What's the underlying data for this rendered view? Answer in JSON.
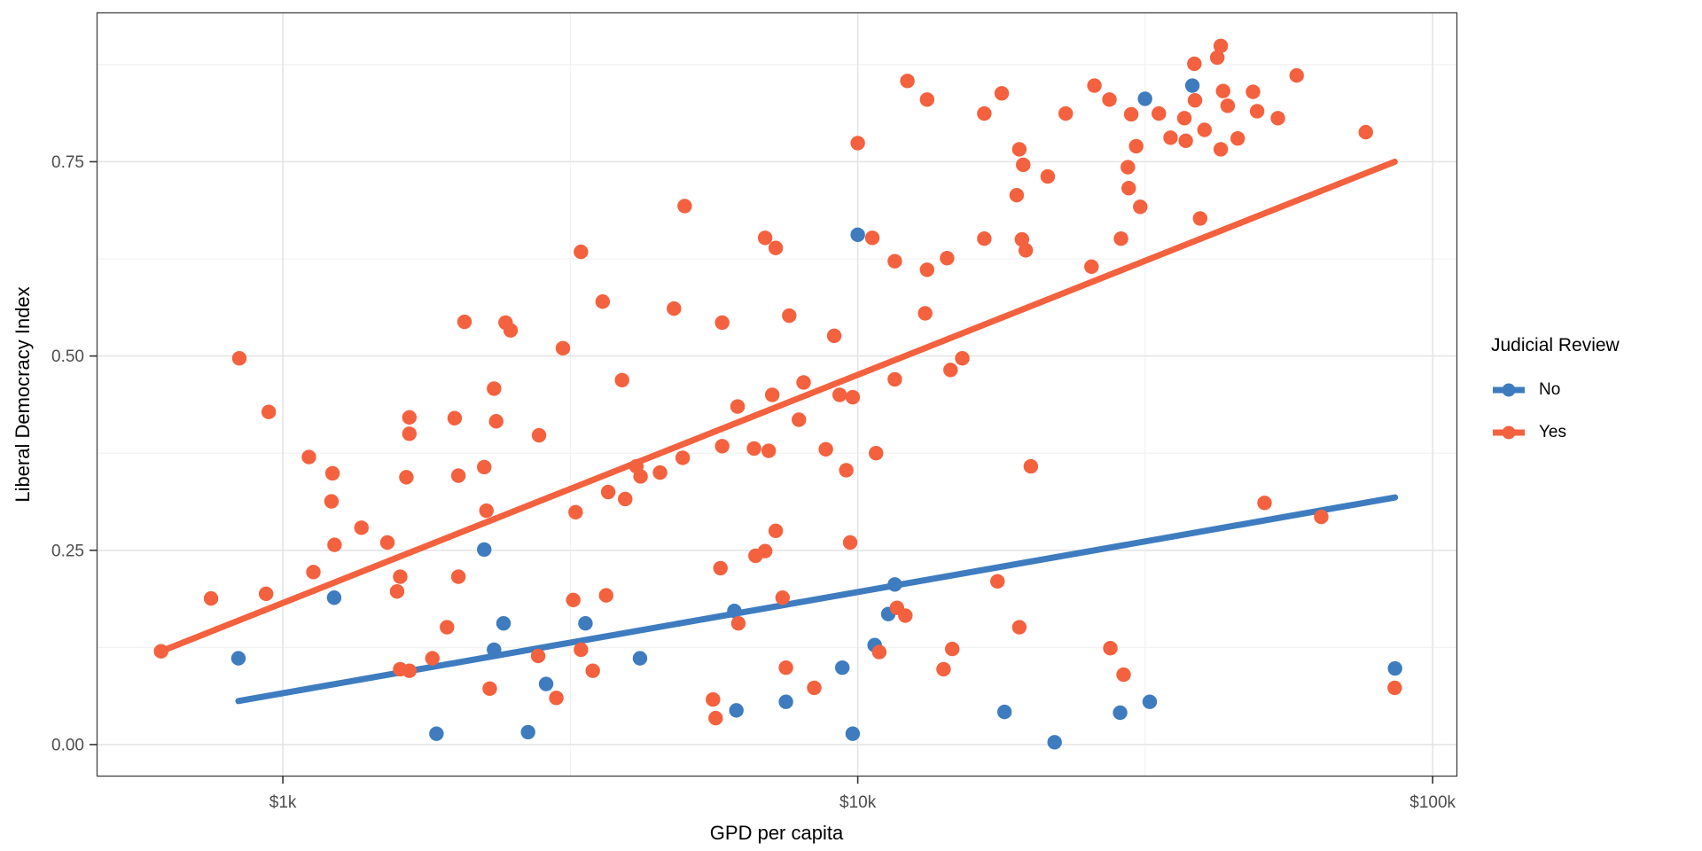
{
  "chart_data": {
    "type": "scatter",
    "title": "",
    "xlabel": "GPD per capita",
    "ylabel": "Liberal Democracy Index",
    "x_scale": "log10",
    "xlim": [
      476,
      110000
    ],
    "ylim": [
      -0.04,
      0.941
    ],
    "grid": true,
    "x_ticks": [
      {
        "value": 1000,
        "label": "$1k"
      },
      {
        "value": 10000,
        "label": "$10k"
      },
      {
        "value": 100000,
        "label": "$100k"
      }
    ],
    "x_minor": [
      3162,
      31623
    ],
    "y_ticks": [
      {
        "value": 0,
        "label": "0.00"
      },
      {
        "value": 0.25,
        "label": "0.25"
      },
      {
        "value": 0.5,
        "label": "0.50"
      },
      {
        "value": 0.75,
        "label": "0.75"
      }
    ],
    "y_minor": [
      0.125,
      0.375,
      0.625,
      0.875
    ],
    "legend": {
      "title": "Judicial Review",
      "position": "right",
      "entries": [
        {
          "label": "No",
          "color": "#3e7cbf"
        },
        {
          "label": "Yes",
          "color": "#f4613e"
        }
      ]
    },
    "series": [
      {
        "name": "No",
        "color": "#3e7cbf",
        "points": [
          [
            837,
            0.111
          ],
          [
            1228,
            0.189
          ],
          [
            1850,
            0.014
          ],
          [
            2240,
            0.251
          ],
          [
            2330,
            0.122
          ],
          [
            2420,
            0.156
          ],
          [
            2670,
            0.016
          ],
          [
            2870,
            0.078
          ],
          [
            3360,
            0.156
          ],
          [
            4180,
            0.111
          ],
          [
            6100,
            0.172
          ],
          [
            6150,
            0.044
          ],
          [
            7500,
            0.055
          ],
          [
            9400,
            0.099
          ],
          [
            9800,
            0.014
          ],
          [
            10000,
            0.656
          ],
          [
            10700,
            0.128
          ],
          [
            11300,
            0.168
          ],
          [
            11600,
            0.206
          ],
          [
            18000,
            0.042
          ],
          [
            22000,
            0.003
          ],
          [
            28600,
            0.041
          ],
          [
            31600,
            0.831
          ],
          [
            32200,
            0.055
          ],
          [
            38200,
            0.848
          ],
          [
            86000,
            0.098
          ]
        ]
      },
      {
        "name": "Yes",
        "color": "#f4613e",
        "points": [
          [
            614,
            0.12
          ],
          [
            750,
            0.188
          ],
          [
            840,
            0.497
          ],
          [
            935,
            0.194
          ],
          [
            945,
            0.428
          ],
          [
            1110,
            0.37
          ],
          [
            1130,
            0.222
          ],
          [
            1215,
            0.313
          ],
          [
            1220,
            0.349
          ],
          [
            1230,
            0.257
          ],
          [
            1370,
            0.279
          ],
          [
            1520,
            0.26
          ],
          [
            1580,
            0.197
          ],
          [
            1600,
            0.216
          ],
          [
            1600,
            0.097
          ],
          [
            1640,
            0.344
          ],
          [
            1660,
            0.421
          ],
          [
            1660,
            0.4
          ],
          [
            1660,
            0.095
          ],
          [
            1820,
            0.111
          ],
          [
            1930,
            0.151
          ],
          [
            1990,
            0.42
          ],
          [
            2020,
            0.346
          ],
          [
            2020,
            0.216
          ],
          [
            2070,
            0.544
          ],
          [
            2240,
            0.357
          ],
          [
            2260,
            0.301
          ],
          [
            2290,
            0.072
          ],
          [
            2330,
            0.458
          ],
          [
            2350,
            0.416
          ],
          [
            2440,
            0.543
          ],
          [
            2490,
            0.533
          ],
          [
            2780,
            0.114
          ],
          [
            2790,
            0.398
          ],
          [
            2990,
            0.06
          ],
          [
            3070,
            0.51
          ],
          [
            3200,
            0.186
          ],
          [
            3230,
            0.299
          ],
          [
            3300,
            0.634
          ],
          [
            3300,
            0.122
          ],
          [
            3460,
            0.095
          ],
          [
            3600,
            0.57
          ],
          [
            3650,
            0.192
          ],
          [
            3680,
            0.325
          ],
          [
            3890,
            0.469
          ],
          [
            3940,
            0.316
          ],
          [
            4120,
            0.358
          ],
          [
            4190,
            0.345
          ],
          [
            4530,
            0.35
          ],
          [
            4790,
            0.561
          ],
          [
            4960,
            0.369
          ],
          [
            5000,
            0.693
          ],
          [
            5600,
            0.058
          ],
          [
            5660,
            0.034
          ],
          [
            5770,
            0.227
          ],
          [
            5810,
            0.543
          ],
          [
            5810,
            0.384
          ],
          [
            6180,
            0.435
          ],
          [
            6200,
            0.156
          ],
          [
            6600,
            0.381
          ],
          [
            6640,
            0.243
          ],
          [
            6900,
            0.249
          ],
          [
            6900,
            0.652
          ],
          [
            7000,
            0.378
          ],
          [
            7100,
            0.45
          ],
          [
            7200,
            0.639
          ],
          [
            7200,
            0.275
          ],
          [
            7400,
            0.189
          ],
          [
            7500,
            0.099
          ],
          [
            7600,
            0.552
          ],
          [
            7900,
            0.418
          ],
          [
            8050,
            0.466
          ],
          [
            8400,
            0.073
          ],
          [
            8800,
            0.38
          ],
          [
            9100,
            0.526
          ],
          [
            9300,
            0.45
          ],
          [
            9550,
            0.353
          ],
          [
            9700,
            0.26
          ],
          [
            9800,
            0.447
          ],
          [
            10000,
            0.774
          ],
          [
            10600,
            0.652
          ],
          [
            10760,
            0.375
          ],
          [
            10900,
            0.119
          ],
          [
            11600,
            0.622
          ],
          [
            11600,
            0.47
          ],
          [
            11700,
            0.176
          ],
          [
            12100,
            0.166
          ],
          [
            12200,
            0.854
          ],
          [
            13100,
            0.555
          ],
          [
            13200,
            0.611
          ],
          [
            13200,
            0.83
          ],
          [
            14100,
            0.097
          ],
          [
            14300,
            0.626
          ],
          [
            14500,
            0.482
          ],
          [
            14600,
            0.123
          ],
          [
            15200,
            0.497
          ],
          [
            16600,
            0.812
          ],
          [
            16600,
            0.651
          ],
          [
            17500,
            0.21
          ],
          [
            17800,
            0.838
          ],
          [
            18900,
            0.707
          ],
          [
            19100,
            0.766
          ],
          [
            19100,
            0.151
          ],
          [
            19300,
            0.65
          ],
          [
            19400,
            0.746
          ],
          [
            19600,
            0.636
          ],
          [
            20000,
            0.358
          ],
          [
            21400,
            0.731
          ],
          [
            23000,
            0.812
          ],
          [
            25500,
            0.615
          ],
          [
            25800,
            0.848
          ],
          [
            27400,
            0.83
          ],
          [
            27500,
            0.124
          ],
          [
            28700,
            0.651
          ],
          [
            29000,
            0.09
          ],
          [
            29500,
            0.743
          ],
          [
            29600,
            0.716
          ],
          [
            29900,
            0.811
          ],
          [
            30500,
            0.77
          ],
          [
            31000,
            0.692
          ],
          [
            33400,
            0.812
          ],
          [
            35000,
            0.781
          ],
          [
            37000,
            0.806
          ],
          [
            37200,
            0.777
          ],
          [
            38500,
            0.876
          ],
          [
            38600,
            0.829
          ],
          [
            39400,
            0.677
          ],
          [
            40100,
            0.791
          ],
          [
            42200,
            0.884
          ],
          [
            42800,
            0.899
          ],
          [
            42800,
            0.766
          ],
          [
            43200,
            0.841
          ],
          [
            44000,
            0.822
          ],
          [
            45800,
            0.78
          ],
          [
            48700,
            0.84
          ],
          [
            49500,
            0.815
          ],
          [
            51000,
            0.311
          ],
          [
            53800,
            0.806
          ],
          [
            58000,
            0.861
          ],
          [
            64000,
            0.293
          ],
          [
            76500,
            0.788
          ],
          [
            85900,
            0.073
          ]
        ]
      }
    ],
    "trend_lines": [
      {
        "series": "No",
        "color": "#3e7cbf",
        "x1": 837,
        "y1": 0.056,
        "x2": 86000,
        "y2": 0.318
      },
      {
        "series": "Yes",
        "color": "#f4613e",
        "x1": 614,
        "y1": 0.12,
        "x2": 85900,
        "y2": 0.75
      }
    ]
  }
}
